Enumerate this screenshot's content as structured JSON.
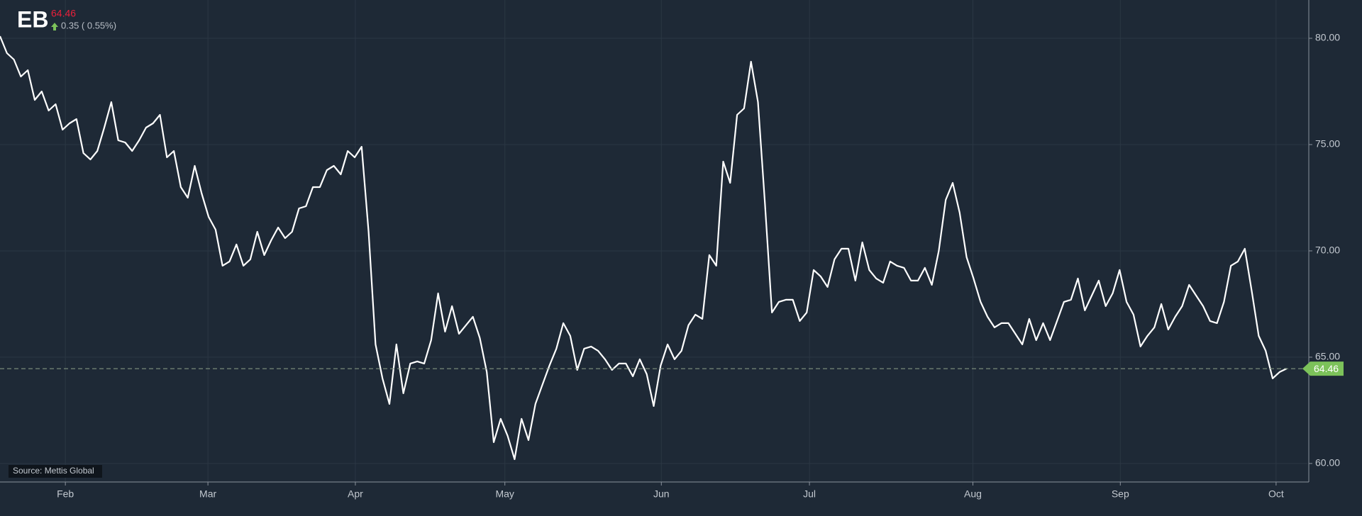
{
  "header": {
    "symbol": "EB",
    "price": "64.46",
    "change": "0.35 ( 0.55%)"
  },
  "source": "Source: Mettis Global",
  "chart_data": {
    "type": "line",
    "series": [
      {
        "color": "#ffffff",
        "values": [
          80.1,
          79.3,
          79.0,
          78.2,
          78.5,
          77.1,
          77.5,
          76.6,
          76.9,
          75.7,
          76.0,
          76.2,
          74.6,
          74.3,
          74.7,
          75.8,
          77.0,
          75.2,
          75.1,
          74.7,
          75.2,
          75.8,
          76.0,
          76.4,
          74.4,
          74.7,
          73.0,
          72.5,
          74.0,
          72.7,
          71.6,
          71.0,
          69.3,
          69.5,
          70.3,
          69.3,
          69.6,
          70.9,
          69.8,
          70.5,
          71.1,
          70.6,
          70.9,
          72.0,
          72.1,
          73.0,
          73.0,
          73.8,
          74.0,
          73.6,
          74.7,
          74.4,
          74.9,
          70.9,
          65.6,
          64.0,
          62.8,
          65.6,
          63.3,
          64.7,
          64.8,
          64.7,
          65.8,
          68.0,
          66.2,
          67.4,
          66.1,
          66.5,
          66.9,
          65.9,
          64.3,
          61.0,
          62.1,
          61.3,
          60.2,
          62.1,
          61.1,
          62.8,
          63.7,
          64.6,
          65.4,
          66.6,
          66.0,
          64.4,
          65.4,
          65.5,
          65.3,
          64.9,
          64.4,
          64.7,
          64.7,
          64.1,
          64.9,
          64.2,
          62.7,
          64.6,
          65.6,
          64.9,
          65.3,
          66.5,
          67.0,
          66.8,
          69.8,
          69.3,
          74.2,
          73.2,
          76.4,
          76.7,
          78.9,
          77.0,
          72.2,
          67.1,
          67.6,
          67.7,
          67.7,
          66.7,
          67.1,
          69.1,
          68.8,
          68.3,
          69.6,
          70.1,
          70.1,
          68.6,
          70.4,
          69.1,
          68.7,
          68.5,
          69.5,
          69.3,
          69.2,
          68.6,
          68.6,
          69.2,
          68.4,
          70.0,
          72.4,
          73.2,
          71.8,
          69.7,
          68.7,
          67.6,
          66.9,
          66.4,
          66.6,
          66.6,
          66.1,
          65.6,
          66.8,
          65.8,
          66.6,
          65.8,
          66.7,
          67.6,
          67.7,
          68.7,
          67.2,
          67.9,
          68.6,
          67.4,
          68.0,
          69.1,
          67.6,
          67.0,
          65.5,
          66.0,
          66.4,
          67.5,
          66.3,
          66.9,
          67.4,
          68.4,
          67.9,
          67.4,
          66.7,
          66.6,
          67.6,
          69.3,
          69.5,
          70.1,
          68.1,
          66.0,
          65.3,
          64.0,
          64.3,
          64.46
        ]
      }
    ],
    "xlim": [
      0,
      188
    ],
    "xticks": [
      {
        "value": 9.4,
        "label": "Feb"
      },
      {
        "value": 29.9,
        "label": "Mar"
      },
      {
        "value": 51.1,
        "label": "Apr"
      },
      {
        "value": 72.6,
        "label": "May"
      },
      {
        "value": 95.1,
        "label": "Jun"
      },
      {
        "value": 116.4,
        "label": "Jul"
      },
      {
        "value": 139.9,
        "label": "Aug"
      },
      {
        "value": 161.1,
        "label": "Sep"
      },
      {
        "value": 183.5,
        "label": "Oct"
      }
    ],
    "ylim": [
      59.13,
      81.8
    ],
    "yticks": [
      {
        "value": 60,
        "label": "60.00"
      },
      {
        "value": 65,
        "label": "65.00"
      },
      {
        "value": 70,
        "label": "70.00"
      },
      {
        "value": 75,
        "label": "75.00"
      },
      {
        "value": 80,
        "label": "80.00"
      }
    ],
    "last_value": 64.46,
    "grid": true
  }
}
